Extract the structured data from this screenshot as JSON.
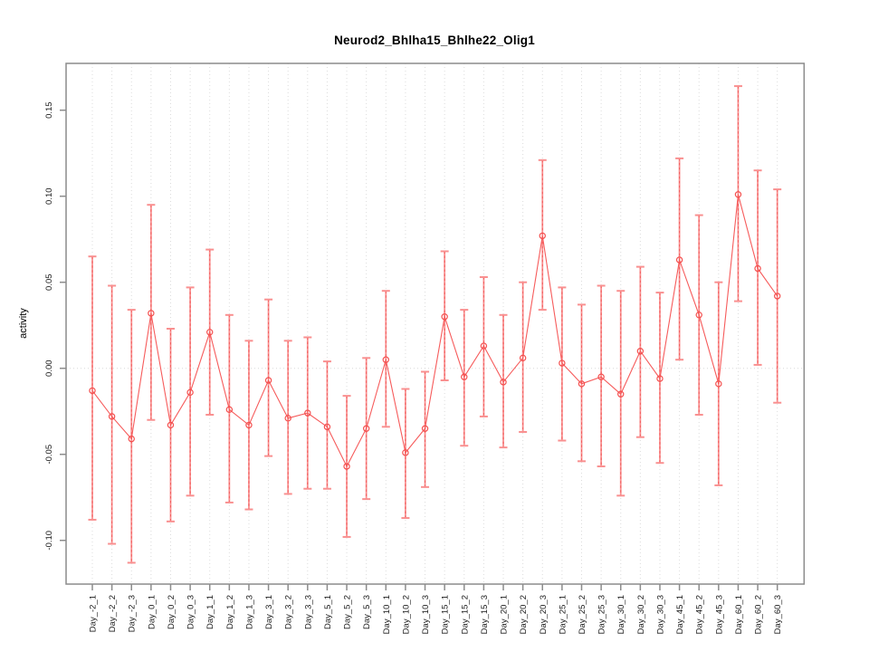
{
  "chart_data": {
    "type": "line",
    "title": "Neurod2_Bhlha15_Bhlhe22_Olig1",
    "ylabel": "activity",
    "xlabel": "",
    "legend": "none",
    "grid": "vertical dotted gridline at every category; horizontal dotted line at y=0",
    "marker": "open-circle",
    "error_bars": true,
    "ylim": [
      -0.1254,
      0.1772
    ],
    "yticks": [
      -0.1,
      -0.05,
      0.0,
      0.05,
      0.1,
      0.15
    ],
    "ytick_labels": [
      "-0.10",
      "-0.05",
      "0.00",
      "0.05",
      "0.10",
      "0.15"
    ],
    "categories": [
      "Day_-2_1",
      "Day_-2_2",
      "Day_-2_3",
      "Day_0_1",
      "Day_0_2",
      "Day_0_3",
      "Day_1_1",
      "Day_1_2",
      "Day_1_3",
      "Day_3_1",
      "Day_3_2",
      "Day_3_3",
      "Day_5_1",
      "Day_5_2",
      "Day_5_3",
      "Day_10_1",
      "Day_10_2",
      "Day_10_3",
      "Day_15_1",
      "Day_15_2",
      "Day_15_3",
      "Day_20_1",
      "Day_20_2",
      "Day_20_3",
      "Day_25_1",
      "Day_25_2",
      "Day_25_3",
      "Day_30_1",
      "Day_30_2",
      "Day_30_3",
      "Day_45_1",
      "Day_45_2",
      "Day_45_3",
      "Day_60_1",
      "Day_60_2",
      "Day_60_3"
    ],
    "series": [
      {
        "name": "activity",
        "values": [
          -0.013,
          -0.028,
          -0.041,
          0.032,
          -0.033,
          -0.014,
          0.021,
          -0.024,
          -0.033,
          -0.007,
          -0.029,
          -0.026,
          -0.034,
          -0.057,
          -0.035,
          0.005,
          -0.049,
          -0.035,
          0.03,
          -0.005,
          0.013,
          -0.008,
          0.006,
          0.077,
          0.003,
          -0.009,
          -0.005,
          -0.015,
          0.01,
          -0.006,
          0.063,
          0.031,
          -0.009,
          0.101,
          0.058,
          0.042
        ],
        "lower": [
          -0.088,
          -0.102,
          -0.113,
          -0.03,
          -0.089,
          -0.074,
          -0.027,
          -0.078,
          -0.082,
          -0.051,
          -0.073,
          -0.07,
          -0.07,
          -0.098,
          -0.076,
          -0.034,
          -0.087,
          -0.069,
          -0.007,
          -0.045,
          -0.028,
          -0.046,
          -0.037,
          0.034,
          -0.042,
          -0.054,
          -0.057,
          -0.074,
          -0.04,
          -0.055,
          0.005,
          -0.027,
          -0.068,
          0.039,
          0.002,
          -0.02
        ],
        "upper": [
          0.065,
          0.048,
          0.034,
          0.095,
          0.023,
          0.047,
          0.069,
          0.031,
          0.016,
          0.04,
          0.016,
          0.018,
          0.004,
          -0.016,
          0.006,
          0.045,
          -0.012,
          -0.002,
          0.068,
          0.034,
          0.053,
          0.031,
          0.05,
          0.121,
          0.047,
          0.037,
          0.048,
          0.045,
          0.059,
          0.044,
          0.122,
          0.089,
          0.05,
          0.164,
          0.115,
          0.104
        ]
      }
    ],
    "colors": {
      "series_line": "#F65B5B",
      "marker_stroke": "#F4504F",
      "error_bar": "#F99090",
      "error_bar_dash": "#F25C5C",
      "axis_box": "#8C8C8C",
      "gridline": "#DCDCDC",
      "zero_line": "#D8D8D8",
      "tick_text": "#1A1A1A",
      "background": "#FFFFFF"
    }
  }
}
